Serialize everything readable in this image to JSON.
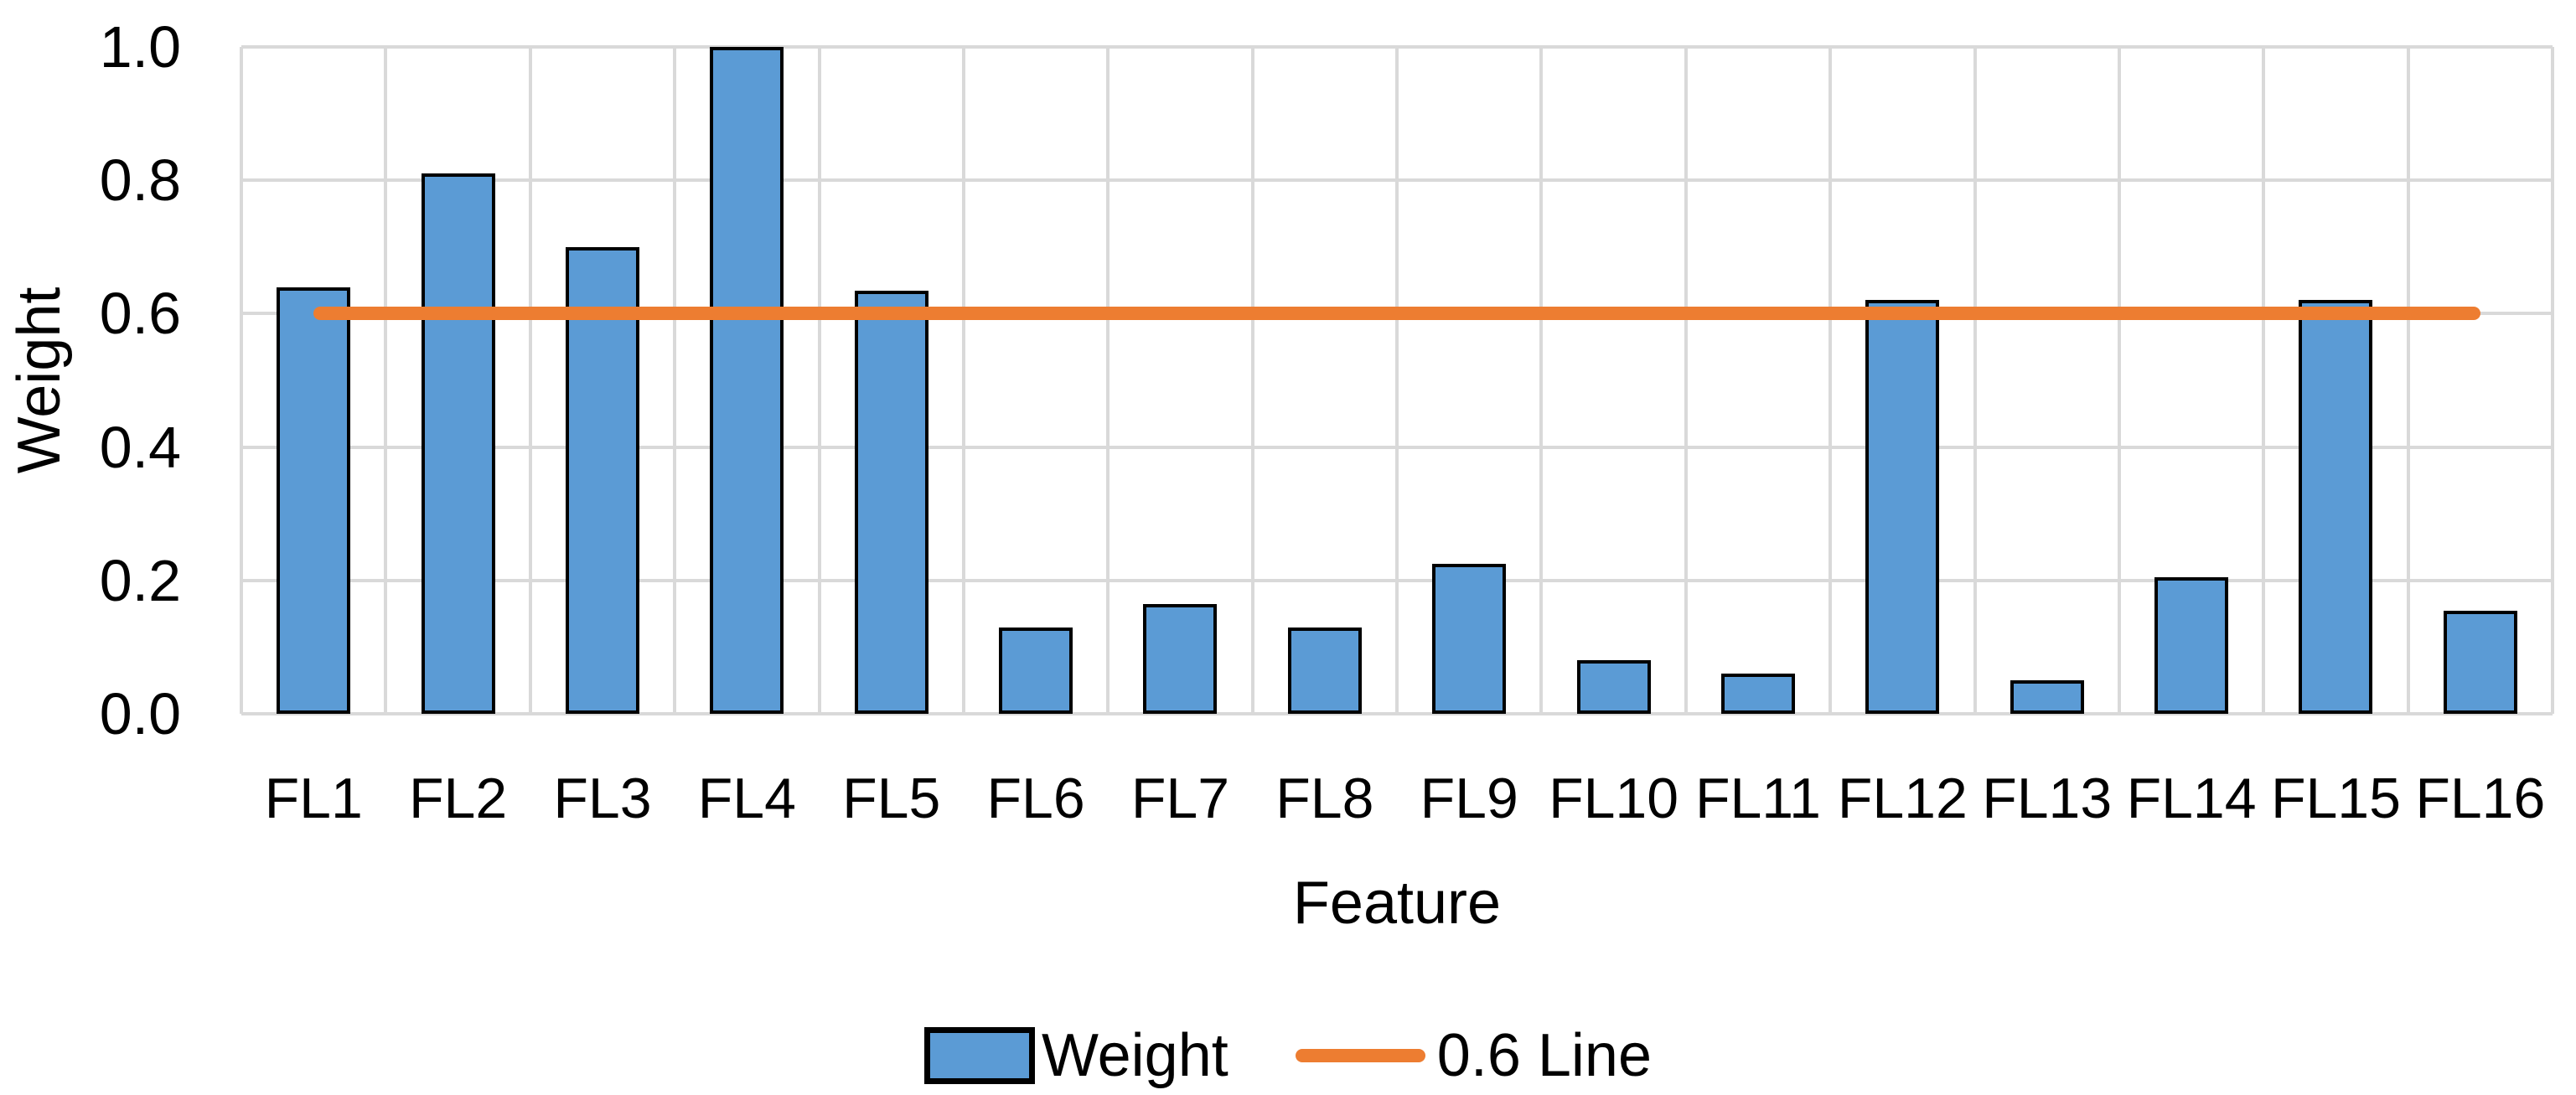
{
  "chart_data": {
    "type": "bar",
    "title": "",
    "categories": [
      "FL1",
      "FL2",
      "FL3",
      "FL4",
      "FL5",
      "FL6",
      "FL7",
      "FL8",
      "FL9",
      "FL10",
      "FL11",
      "FL12",
      "FL13",
      "FL14",
      "FL15",
      "FL16"
    ],
    "series": [
      {
        "name": "Weight",
        "type": "bar",
        "values": [
          0.64,
          0.81,
          0.7,
          1.0,
          0.635,
          0.13,
          0.165,
          0.13,
          0.225,
          0.08,
          0.06,
          0.62,
          0.05,
          0.205,
          0.62,
          0.155
        ],
        "fill_color": "#5B9BD5",
        "border_color": "#000000"
      },
      {
        "name": "0.6 Line",
        "type": "line",
        "constant_value": 0.6,
        "color": "#ED7D31"
      }
    ],
    "xlabel": "Feature",
    "ylabel": "Weight",
    "ylim": [
      0.0,
      1.0
    ],
    "ytick_interval": 0.2,
    "ytick_labels": [
      "0.0",
      "0.2",
      "0.4",
      "0.6",
      "0.8",
      "1.0"
    ],
    "grid": "on",
    "gridline_color": "#D9D9D9",
    "text_color": "#000000",
    "legend_position": "bottom"
  }
}
